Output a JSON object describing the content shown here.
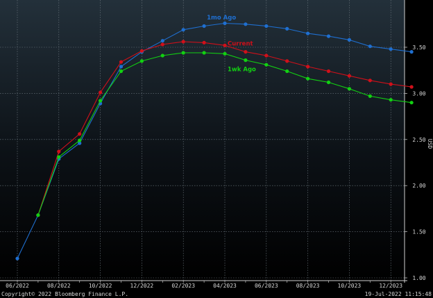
{
  "chart_data": {
    "type": "line",
    "ylabel": "USD",
    "ylim": [
      1.0,
      3.9
    ],
    "y_ticks": [
      1.0,
      1.5,
      2.0,
      2.5,
      3.0,
      3.5
    ],
    "y_tick_labels": [
      "1.00",
      "1.50",
      "2.00",
      "2.50",
      "3.00",
      "3.50"
    ],
    "x_ticks": [
      "2022-06",
      "2022-08",
      "2022-10",
      "2022-12",
      "2023-02",
      "2023-04",
      "2023-06",
      "2023-08",
      "2023-10",
      "2023-12"
    ],
    "x_tick_labels": [
      "06/2022",
      "08/2022",
      "10/2022",
      "12/2022",
      "02/2023",
      "04/2023",
      "06/2023",
      "08/2023",
      "10/2023",
      "12/2023"
    ],
    "x_range": [
      "2022-06",
      "2024-01"
    ],
    "grid": true,
    "series": [
      {
        "name": "1mo Ago",
        "color": "#1f6fd0",
        "x": [
          "2022-06",
          "2022-07",
          "2022-08",
          "2022-09",
          "2022-10",
          "2022-11",
          "2022-12",
          "2023-01",
          "2023-02",
          "2023-03",
          "2023-04",
          "2023-05",
          "2023-06",
          "2023-07",
          "2023-08",
          "2023-09",
          "2023-10",
          "2023-11",
          "2023-12",
          "2024-01"
        ],
        "values": [
          1.21,
          1.68,
          2.29,
          2.46,
          2.89,
          3.29,
          3.45,
          3.57,
          3.69,
          3.73,
          3.76,
          3.75,
          3.73,
          3.7,
          3.65,
          3.62,
          3.58,
          3.51,
          3.48,
          3.45
        ]
      },
      {
        "name": "Current",
        "color": "#d0101a",
        "x": [
          "2022-07",
          "2022-08",
          "2022-09",
          "2022-10",
          "2022-11",
          "2022-12",
          "2023-01",
          "2023-02",
          "2023-03",
          "2023-04",
          "2023-05",
          "2023-06",
          "2023-07",
          "2023-08",
          "2023-09",
          "2023-10",
          "2023-11",
          "2023-12",
          "2024-01"
        ],
        "values": [
          1.68,
          2.37,
          2.56,
          3.01,
          3.34,
          3.46,
          3.53,
          3.56,
          3.55,
          3.52,
          3.45,
          3.41,
          3.35,
          3.29,
          3.24,
          3.19,
          3.14,
          3.1,
          3.07
        ]
      },
      {
        "name": "1wk Ago",
        "color": "#12d012",
        "x": [
          "2022-07",
          "2022-08",
          "2022-09",
          "2022-10",
          "2022-11",
          "2022-12",
          "2023-01",
          "2023-02",
          "2023-03",
          "2023-04",
          "2023-05",
          "2023-06",
          "2023-07",
          "2023-08",
          "2023-09",
          "2023-10",
          "2023-11",
          "2023-12",
          "2024-01"
        ],
        "values": [
          1.68,
          2.31,
          2.49,
          2.92,
          3.24,
          3.35,
          3.41,
          3.44,
          3.44,
          3.43,
          3.36,
          3.31,
          3.24,
          3.16,
          3.12,
          3.05,
          2.97,
          2.93,
          2.9
        ]
      }
    ],
    "series_labels": [
      {
        "text": "1mo Ago",
        "color": "#1f6fd0",
        "anchor_x": "2023-03",
        "anchor_y": 3.8
      },
      {
        "text": "Current",
        "color": "#d0101a",
        "anchor_x": "2023-04",
        "anchor_y": 3.52
      },
      {
        "text": "1wk Ago",
        "color": "#12d012",
        "anchor_x": "2023-04",
        "anchor_y": 3.24
      }
    ]
  },
  "footer": {
    "copyright": "Copyright© 2022 Bloomberg Finance L.P.",
    "timestamp": "19-Jul-2022 11:15:48"
  }
}
